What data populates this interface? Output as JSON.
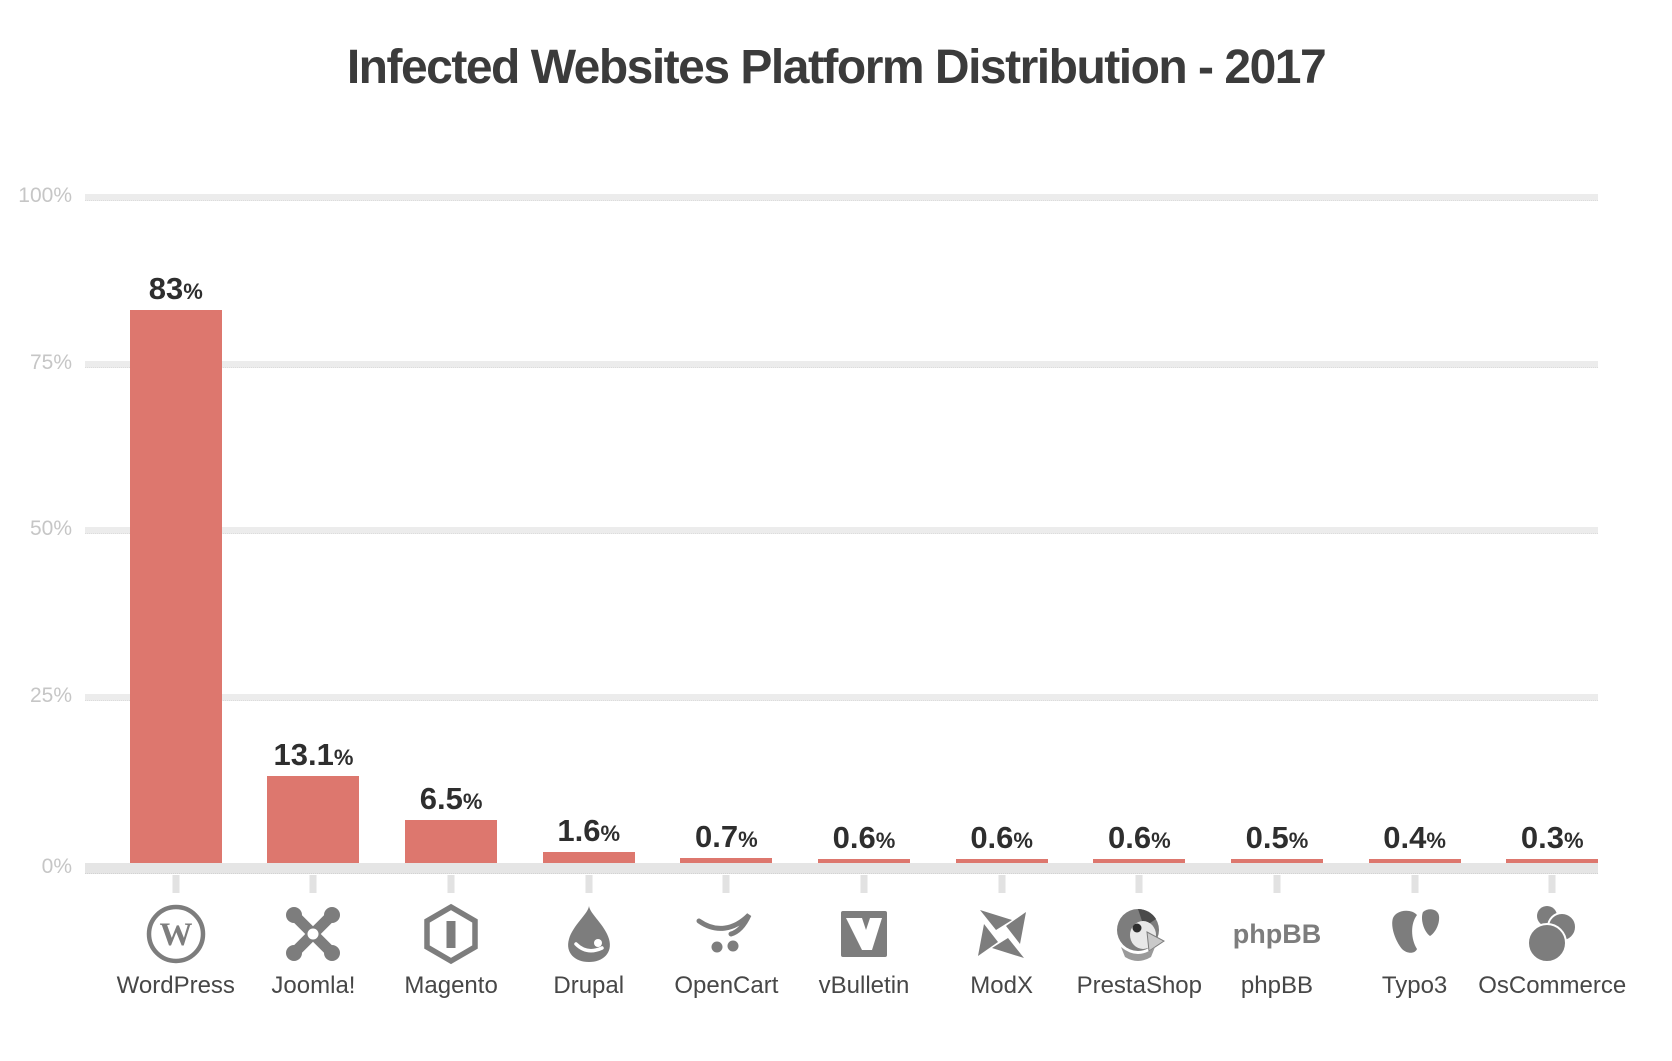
{
  "title": "Infected Websites Platform Distribution - 2017",
  "colors": {
    "bar": "#dd776e",
    "grid": "#ececec",
    "baseline": "#e5e5e5",
    "tick": "#e2e2e2",
    "axis_label": "#c6c6c6",
    "category_label": "#474747",
    "value_label": "#2e2e2e",
    "icon": "#7d7d7d",
    "title": "#3b3b3b",
    "background": "#ffffff"
  },
  "chart_data": {
    "type": "bar",
    "title": "Infected Websites Platform Distribution - 2017",
    "categories": [
      "WordPress",
      "Joomla!",
      "Magento",
      "Drupal",
      "OpenCart",
      "vBulletin",
      "ModX",
      "PrestaShop",
      "phpBB",
      "Typo3",
      "OsCommerce"
    ],
    "values": [
      83,
      13.1,
      6.5,
      1.6,
      0.7,
      0.6,
      0.6,
      0.6,
      0.5,
      0.4,
      0.3
    ],
    "value_labels": [
      "83%",
      "13.1%",
      "6.5%",
      "1.6%",
      "0.7%",
      "0.6%",
      "0.6%",
      "0.6%",
      "0.5%",
      "0.4%",
      "0.3%"
    ],
    "icons": [
      "wordpress-icon",
      "joomla-icon",
      "magento-icon",
      "drupal-icon",
      "opencart-icon",
      "vbulletin-icon",
      "modx-icon",
      "prestashop-icon",
      "phpbb-icon",
      "typo3-icon",
      "oscommerce-icon"
    ],
    "xlabel": "",
    "ylabel": "",
    "ylim": [
      0,
      100
    ],
    "yticks": [
      {
        "value": 0,
        "label": "0%"
      },
      {
        "value": 25,
        "label": "25%"
      },
      {
        "value": 50,
        "label": "50%"
      },
      {
        "value": 75,
        "label": "75%"
      },
      {
        "value": 100,
        "label": "100%"
      }
    ],
    "grid": "horizontal-only",
    "legend": "none",
    "bar_color": "#dd776e"
  }
}
